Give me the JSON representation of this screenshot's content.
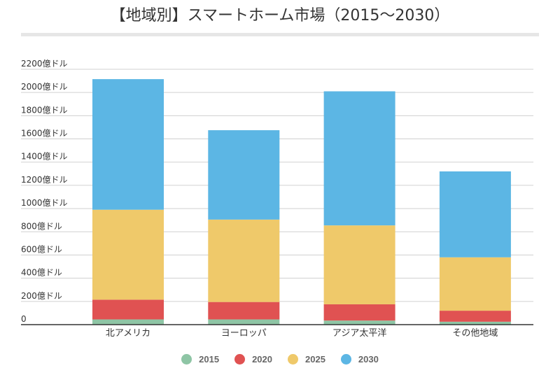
{
  "chart_data": {
    "type": "bar",
    "stacked": true,
    "title": "【地域別】スマートホーム市場（2015〜2030）",
    "categories": [
      "北アメリカ",
      "ヨーロッパ",
      "アジア太平洋",
      "その他地域"
    ],
    "series": [
      {
        "name": "2015",
        "color": "#8ec5a5",
        "values": [
          45,
          45,
          35,
          25
        ]
      },
      {
        "name": "2020",
        "color": "#e05252",
        "values": [
          170,
          150,
          140,
          95
        ]
      },
      {
        "name": "2025",
        "color": "#efc96a",
        "values": [
          775,
          710,
          680,
          460
        ]
      },
      {
        "name": "2030",
        "color": "#5cb6e4",
        "values": [
          1125,
          770,
          1155,
          740
        ]
      }
    ],
    "ylim": [
      0,
      2200
    ],
    "yticks": [
      0,
      200,
      400,
      600,
      800,
      1000,
      1200,
      1400,
      1600,
      1800,
      2000,
      2200
    ],
    "ytick_labels": [
      "0",
      "200億ドル",
      "400億ドル",
      "600億ドル",
      "800億ドル",
      "1000億ドル",
      "1200億ドル",
      "1400億ドル",
      "1600億ドル",
      "1800億ドル",
      "2000億ドル",
      "2200億ドル"
    ],
    "grid": true,
    "legend_position": "bottom"
  }
}
